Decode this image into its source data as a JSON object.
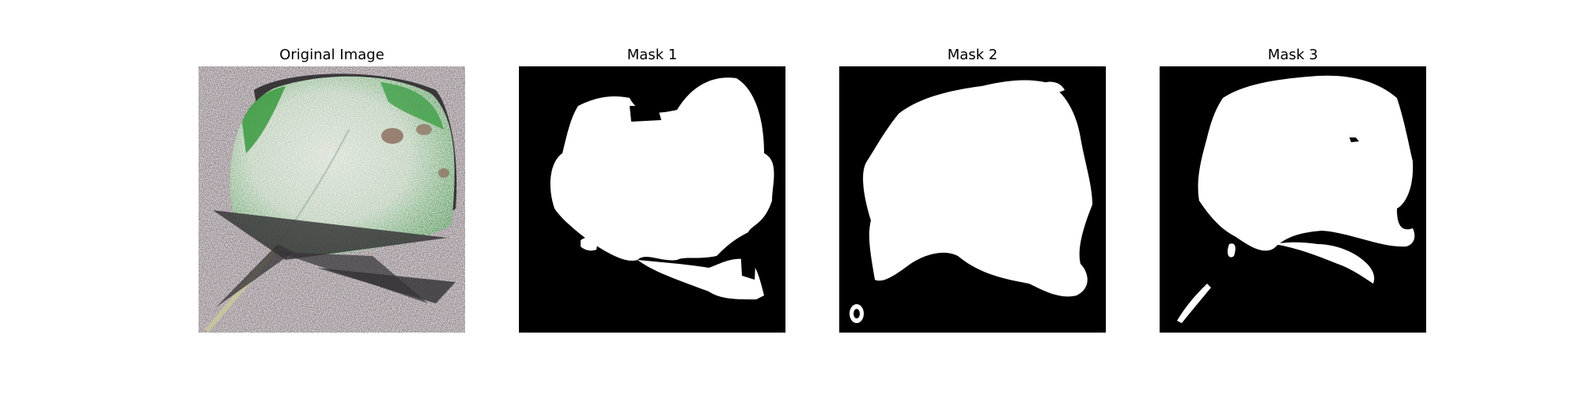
{
  "figure": {
    "panels": [
      {
        "title": "Original Image"
      },
      {
        "title": "Mask 1"
      },
      {
        "title": "Mask 2"
      },
      {
        "title": "Mask 3"
      }
    ]
  },
  "colors": {
    "background": "#ffffff",
    "mask_background": "#000000",
    "mask_foreground": "#ffffff",
    "ground": "#8f8288",
    "leaf_green": "#3f9a46",
    "leaf_pale": "#c6d2c3",
    "shadow": "#3c3a3c"
  }
}
